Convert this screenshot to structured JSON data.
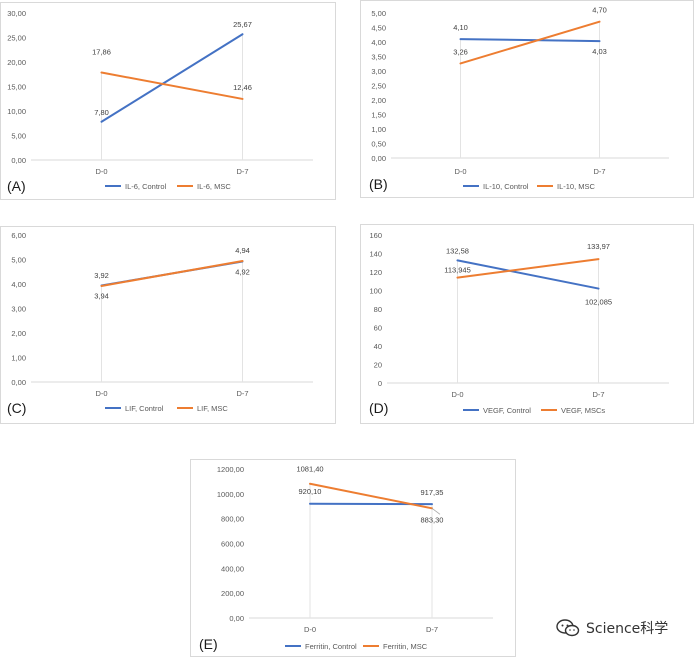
{
  "chart_data": [
    {
      "id": "A",
      "panel_label": "(A)",
      "type": "line",
      "categories": [
        "D-0",
        "D-7"
      ],
      "ylim": [
        0,
        30
      ],
      "yticks": [
        "0,00",
        "5,00",
        "10,00",
        "15,00",
        "20,00",
        "25,00",
        "30,00"
      ],
      "series": [
        {
          "name": "IL-6, Control",
          "values": [
            7.8,
            25.67
          ],
          "labels": [
            "7,80",
            "25,67"
          ],
          "color": "#4472c4"
        },
        {
          "name": "IL-6, MSC",
          "values": [
            17.86,
            12.46
          ],
          "labels": [
            "17,86",
            "12,46"
          ],
          "color": "#ed7d31"
        }
      ],
      "legend": "bottom"
    },
    {
      "id": "B",
      "panel_label": "(B)",
      "type": "line",
      "categories": [
        "D-0",
        "D-7"
      ],
      "ylim": [
        0,
        5
      ],
      "yticks": [
        "0,00",
        "0,50",
        "1,00",
        "1,50",
        "2,00",
        "2,50",
        "3,00",
        "3,50",
        "4,00",
        "4,50",
        "5,00"
      ],
      "series": [
        {
          "name": "IL-10, Control",
          "values": [
            4.1,
            4.03
          ],
          "labels": [
            "4,10",
            "4,03"
          ],
          "color": "#4472c4"
        },
        {
          "name": "IL-10, MSC",
          "values": [
            3.26,
            4.7
          ],
          "labels": [
            "3,26",
            "4,70"
          ],
          "color": "#ed7d31"
        }
      ],
      "legend": "bottom"
    },
    {
      "id": "C",
      "panel_label": "(C)",
      "type": "line",
      "categories": [
        "D-0",
        "D-7"
      ],
      "ylim": [
        0,
        6
      ],
      "yticks": [
        "0,00",
        "1,00",
        "2,00",
        "3,00",
        "4,00",
        "5,00",
        "6,00"
      ],
      "series": [
        {
          "name": "LIF, Control",
          "values": [
            3.94,
            4.92
          ],
          "labels": [
            "3,94",
            "4,92"
          ],
          "color": "#4472c4"
        },
        {
          "name": "LIF, MSC",
          "values": [
            3.92,
            4.94
          ],
          "labels": [
            "3,92",
            "4,94"
          ],
          "color": "#ed7d31"
        }
      ],
      "legend": "bottom"
    },
    {
      "id": "D",
      "panel_label": "(D)",
      "type": "line",
      "categories": [
        "D-0",
        "D-7"
      ],
      "ylim": [
        0,
        160
      ],
      "yticks": [
        "0",
        "20",
        "40",
        "60",
        "80",
        "100",
        "120",
        "140",
        "160"
      ],
      "series": [
        {
          "name": "VEGF, Control",
          "values": [
            132.58,
            102.085
          ],
          "labels": [
            "132,58",
            "102,085"
          ],
          "color": "#4472c4"
        },
        {
          "name": "VEGF, MSCs",
          "values": [
            113.945,
            133.97
          ],
          "labels": [
            "113,945",
            "133,97"
          ],
          "color": "#ed7d31"
        }
      ],
      "legend": "bottom"
    },
    {
      "id": "E",
      "panel_label": "(E)",
      "type": "line",
      "categories": [
        "D-0",
        "D-7"
      ],
      "ylim": [
        0,
        1200
      ],
      "yticks": [
        "0,00",
        "200,00",
        "400,00",
        "600,00",
        "800,00",
        "1000,00",
        "1200,00"
      ],
      "series": [
        {
          "name": "Ferritin, Control",
          "values": [
            920.1,
            917.35
          ],
          "labels": [
            "920,10",
            "917,35"
          ],
          "color": "#4472c4"
        },
        {
          "name": "Ferritin, MSC",
          "values": [
            1081.4,
            883.3
          ],
          "labels": [
            "1081,40",
            "883,30"
          ],
          "color": "#ed7d31"
        }
      ],
      "legend": "bottom"
    }
  ],
  "watermark": {
    "text": "Science科学",
    "icon": "wechat-icon"
  }
}
